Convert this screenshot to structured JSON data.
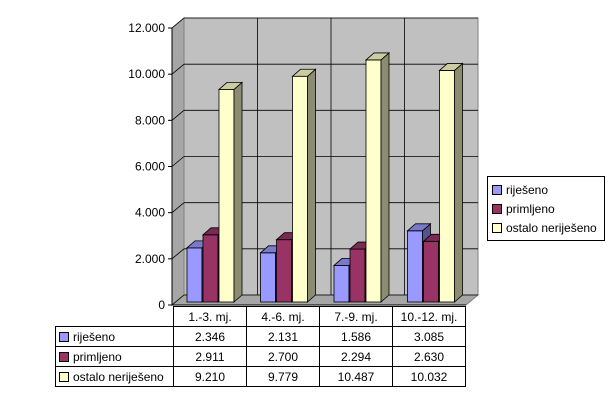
{
  "chart_data": {
    "type": "bar",
    "categories": [
      "1.-3. mj.",
      "4.-6. mj.",
      "7.-9. mj.",
      "10.-12. mj."
    ],
    "series": [
      {
        "name": "riješeno",
        "values": [
          2346,
          2131,
          1586,
          3085
        ],
        "labels": [
          "2.346",
          "2.131",
          "1.586",
          "3.085"
        ],
        "color": "#9999ff"
      },
      {
        "name": "primljeno",
        "values": [
          2911,
          2700,
          2294,
          2630
        ],
        "labels": [
          "2.911",
          "2.700",
          "2.294",
          "2.630"
        ],
        "color": "#993366"
      },
      {
        "name": "ostalo neriješeno",
        "values": [
          9210,
          9779,
          10487,
          10032
        ],
        "labels": [
          "9.210",
          "9.779",
          "10.487",
          "10.032"
        ],
        "color": "#ffffcc"
      }
    ],
    "ylim": [
      0,
      12000
    ],
    "yticks": [
      "0",
      "2.000",
      "4.000",
      "6.000",
      "8.000",
      "10.000",
      "12.000"
    ],
    "grid": true,
    "three_d": true,
    "legend_position": "right",
    "data_table": true,
    "wall_color": "#c0c0c0"
  }
}
